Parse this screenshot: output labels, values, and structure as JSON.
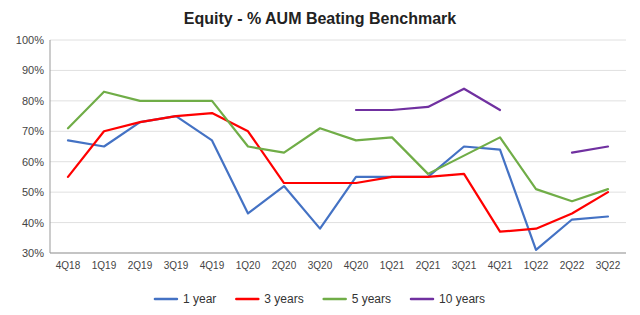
{
  "chart_data": {
    "type": "line",
    "title": "Equity - % AUM Beating Benchmark",
    "categories": [
      "4Q18",
      "1Q19",
      "2Q19",
      "3Q19",
      "4Q19",
      "1Q20",
      "2Q20",
      "3Q20",
      "4Q20",
      "1Q21",
      "2Q21",
      "3Q21",
      "4Q21",
      "1Q22",
      "2Q22",
      "3Q22"
    ],
    "series": [
      {
        "name": "1 year",
        "color": "#4472C4",
        "values": [
          67,
          65,
          73,
          75,
          67,
          43,
          52,
          38,
          55,
          55,
          55,
          65,
          64,
          31,
          41,
          42
        ]
      },
      {
        "name": "3 years",
        "color": "#FF0000",
        "values": [
          55,
          70,
          73,
          75,
          76,
          70,
          53,
          53,
          53,
          55,
          55,
          56,
          37,
          38,
          43,
          50
        ]
      },
      {
        "name": "5 years",
        "color": "#70AD47",
        "values": [
          71,
          83,
          80,
          80,
          80,
          65,
          63,
          71,
          67,
          68,
          56,
          62,
          68,
          51,
          47,
          51
        ]
      },
      {
        "name": "10 years",
        "color": "#7030A0",
        "values": [
          null,
          null,
          null,
          null,
          null,
          null,
          null,
          null,
          77,
          77,
          78,
          84,
          77,
          null,
          63,
          65
        ]
      }
    ],
    "ylim": [
      30,
      100
    ],
    "yticks": [
      {
        "value": 30,
        "label": "30%"
      },
      {
        "value": 40,
        "label": "40%"
      },
      {
        "value": 50,
        "label": "50%"
      },
      {
        "value": 60,
        "label": "60%"
      },
      {
        "value": 70,
        "label": "70%"
      },
      {
        "value": 80,
        "label": "80%"
      },
      {
        "value": 90,
        "label": "90%"
      },
      {
        "value": 100,
        "label": "100%"
      }
    ],
    "grid": true,
    "legend": "bottom"
  }
}
